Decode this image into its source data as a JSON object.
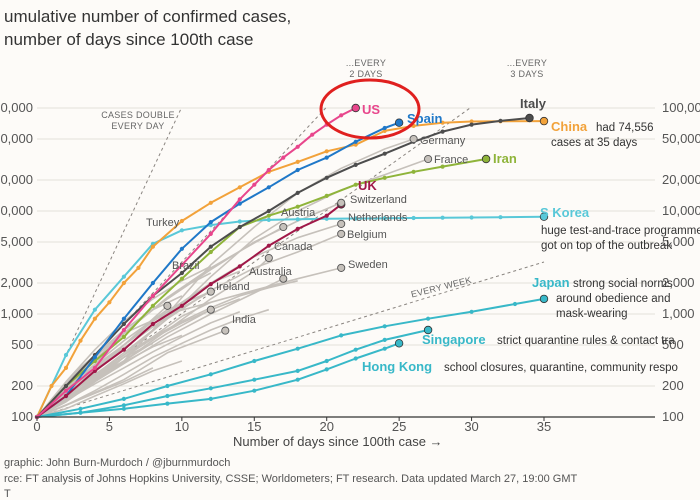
{
  "title_lines": [
    "umulative number of confirmed cases,",
    "number of days since 100th case"
  ],
  "footer_lines": [
    "graphic: John Burn-Murdoch / @jburnmurdoch",
    "rce: FT analysis of Johns Hopkins University, CSSE; Worldometers; FT research. Data updated March 27, 19:00 GMT",
    "T"
  ],
  "colors": {
    "background": "#fdfbf8",
    "gridline": "#e3e0da",
    "grey_series": "#c6c1bb",
    "guide_line": "#8a8580",
    "annotation_circle": "#e0201f",
    "US": "#e8468c",
    "Spain": "#1f78c8",
    "Italy": "#4d4d4d",
    "China": "#f2a23a",
    "Iran": "#8fb43a",
    "UK": "#a01848",
    "S Korea": "#59c8d8",
    "Japan": "#38b8c8",
    "Singapore": "#38b8c8",
    "Hong Kong": "#38b8c8"
  },
  "chart_data": {
    "type": "line",
    "title": "umulative number of confirmed cases, number of days since 100th case",
    "xlabel": "Number of days since 100th case →",
    "ylabel": "",
    "y_scale": "log",
    "xlim": [
      0,
      36
    ],
    "ylim": [
      100,
      100000
    ],
    "grid": true,
    "x_ticks": [
      0,
      5,
      10,
      15,
      20,
      25,
      30,
      35
    ],
    "y_ticks": [
      {
        "value": 100,
        "left": "100",
        "right": "100"
      },
      {
        "value": 200,
        "left": "200",
        "right": "200"
      },
      {
        "value": 500,
        "left": "500",
        "right": "500"
      },
      {
        "value": 1000,
        "left": "1,000",
        "right": "1,000"
      },
      {
        "value": 2000,
        "left": "2,000",
        "right": "2,000"
      },
      {
        "value": 5000,
        "left": "5,000",
        "right": "5,000"
      },
      {
        "value": 10000,
        "left": "0,000",
        "right": "10,000"
      },
      {
        "value": 20000,
        "left": "0,000",
        "right": "20,000"
      },
      {
        "value": 50000,
        "left": "0,000",
        "right": "50,000"
      },
      {
        "value": 100000,
        "left": "0,000",
        "right": "100,000"
      }
    ],
    "guides": [
      {
        "label_lines": [
          "CASES DOUBLE",
          "EVERY DAY"
        ],
        "days_per_doubling": 1
      },
      {
        "label_lines": [
          "...EVERY",
          "2 DAYS"
        ],
        "days_per_doubling": 2
      },
      {
        "label_lines": [
          "...EVERY",
          "3 DAYS"
        ],
        "days_per_doubling": 3
      },
      {
        "label_lines": [
          "EVERY WEEK"
        ],
        "days_per_doubling": 7
      }
    ],
    "highlighted_series": [
      {
        "name": "US",
        "x": [
          0,
          2,
          4,
          6,
          8,
          10,
          12,
          14,
          15,
          16,
          17,
          18,
          19,
          20,
          21,
          22
        ],
        "y": [
          100,
          180,
          300,
          700,
          1500,
          3000,
          6000,
          13000,
          18000,
          25000,
          33000,
          42000,
          55000,
          69000,
          85000,
          100000
        ]
      },
      {
        "name": "Spain",
        "x": [
          0,
          2,
          4,
          6,
          8,
          10,
          12,
          14,
          16,
          18,
          20,
          22,
          24,
          25
        ],
        "y": [
          100,
          160,
          380,
          900,
          2000,
          4300,
          7800,
          11800,
          17000,
          25000,
          33000,
          47000,
          64000,
          72000
        ]
      },
      {
        "name": "Italy",
        "x": [
          0,
          2,
          4,
          6,
          8,
          10,
          12,
          14,
          16,
          18,
          20,
          22,
          24,
          26,
          28,
          30,
          32,
          34
        ],
        "y": [
          100,
          200,
          400,
          800,
          1500,
          2500,
          4500,
          7000,
          10000,
          15000,
          21000,
          28000,
          36000,
          47000,
          59000,
          69000,
          75000,
          80000
        ]
      },
      {
        "name": "China",
        "x": [
          0,
          1,
          2,
          3,
          4,
          5,
          6,
          7,
          8,
          10,
          12,
          14,
          16,
          18,
          20,
          22,
          24,
          26,
          28,
          30,
          32,
          35
        ],
        "y": [
          100,
          200,
          300,
          550,
          900,
          1300,
          2000,
          2800,
          4500,
          8000,
          12000,
          17000,
          24000,
          30000,
          38000,
          44000,
          60000,
          67000,
          72000,
          74000,
          74300,
          74556
        ]
      },
      {
        "name": "Iran",
        "x": [
          0,
          2,
          4,
          6,
          8,
          10,
          12,
          14,
          16,
          18,
          20,
          22,
          24,
          26,
          28,
          31
        ],
        "y": [
          100,
          200,
          350,
          600,
          1200,
          2200,
          4000,
          7000,
          9000,
          11000,
          14000,
          18000,
          21000,
          24000,
          27000,
          32000
        ]
      },
      {
        "name": "UK",
        "x": [
          0,
          2,
          4,
          6,
          8,
          10,
          12,
          14,
          16,
          18,
          20,
          21
        ],
        "y": [
          100,
          160,
          280,
          450,
          800,
          1200,
          1950,
          2900,
          4600,
          6700,
          9000,
          11600
        ]
      },
      {
        "name": "S Korea",
        "x": [
          0,
          2,
          4,
          6,
          8,
          10,
          12,
          14,
          16,
          18,
          20,
          22,
          24,
          26,
          28,
          30,
          32,
          35
        ],
        "y": [
          100,
          400,
          1100,
          2300,
          4800,
          6500,
          7300,
          7900,
          8200,
          8300,
          8400,
          8450,
          8500,
          8550,
          8600,
          8650,
          8700,
          8800
        ]
      },
      {
        "name": "Japan",
        "x": [
          0,
          3,
          6,
          9,
          12,
          15,
          18,
          21,
          24,
          27,
          30,
          33,
          35
        ],
        "y": [
          100,
          120,
          150,
          200,
          260,
          350,
          460,
          620,
          760,
          900,
          1050,
          1250,
          1400
        ]
      },
      {
        "name": "Singapore",
        "x": [
          0,
          3,
          6,
          9,
          12,
          15,
          18,
          20,
          22,
          24,
          27
        ],
        "y": [
          100,
          110,
          130,
          160,
          190,
          230,
          280,
          350,
          450,
          560,
          700
        ]
      },
      {
        "name": "Hong Kong",
        "x": [
          0,
          3,
          6,
          9,
          12,
          15,
          18,
          20,
          22,
          24,
          25
        ],
        "y": [
          100,
          110,
          120,
          135,
          150,
          180,
          230,
          290,
          370,
          460,
          520
        ]
      }
    ],
    "grey_labeled_series": [
      {
        "name": "Germany",
        "x": [
          0,
          3,
          6,
          9,
          12,
          15,
          18,
          21,
          24,
          26
        ],
        "y": [
          100,
          180,
          350,
          1000,
          3000,
          7000,
          15000,
          26000,
          40000,
          50000
        ]
      },
      {
        "name": "France",
        "x": [
          0,
          3,
          6,
          9,
          12,
          15,
          18,
          21,
          24,
          27
        ],
        "y": [
          100,
          200,
          420,
          900,
          2300,
          5400,
          10000,
          16000,
          22500,
          32000
        ]
      },
      {
        "name": "Switzerland",
        "x": [
          0,
          3,
          6,
          9,
          12,
          15,
          18,
          21
        ],
        "y": [
          100,
          300,
          700,
          1400,
          2700,
          5000,
          8000,
          12000
        ]
      },
      {
        "name": "Netherlands",
        "x": [
          0,
          3,
          6,
          9,
          12,
          15,
          18,
          21
        ],
        "y": [
          100,
          250,
          500,
          1000,
          2000,
          3600,
          5500,
          7500
        ]
      },
      {
        "name": "Belgium",
        "x": [
          0,
          3,
          6,
          9,
          12,
          15,
          18,
          21
        ],
        "y": [
          100,
          200,
          400,
          900,
          1700,
          2800,
          4000,
          6000
        ]
      },
      {
        "name": "Austria",
        "x": [
          0,
          3,
          6,
          9,
          12,
          15,
          17
        ],
        "y": [
          100,
          230,
          650,
          1450,
          2800,
          4900,
          7000
        ]
      },
      {
        "name": "Turkey",
        "x": [
          0,
          3,
          6,
          9
        ],
        "y": [
          100,
          200,
          500,
          1200
        ]
      },
      {
        "name": "Canada",
        "x": [
          0,
          3,
          6,
          9,
          12,
          15,
          16
        ],
        "y": [
          100,
          200,
          350,
          700,
          1400,
          2600,
          3500
        ]
      },
      {
        "name": "Brazil",
        "x": [
          0,
          3,
          6,
          9,
          12
        ],
        "y": [
          100,
          250,
          550,
          1100,
          1650
        ]
      },
      {
        "name": "Australia",
        "x": [
          0,
          3,
          6,
          9,
          12,
          15,
          17
        ],
        "y": [
          100,
          180,
          330,
          600,
          1000,
          1600,
          2200
        ]
      },
      {
        "name": "Ireland",
        "x": [
          0,
          3,
          6,
          9,
          12
        ],
        "y": [
          100,
          190,
          350,
          650,
          1100
        ]
      },
      {
        "name": "Sweden",
        "x": [
          0,
          3,
          6,
          9,
          12,
          15,
          18,
          21
        ],
        "y": [
          100,
          300,
          650,
          1000,
          1300,
          1700,
          2200,
          2800
        ]
      },
      {
        "name": "India",
        "x": [
          0,
          3,
          6,
          9,
          13
        ],
        "y": [
          100,
          150,
          230,
          420,
          690
        ]
      }
    ],
    "grey_background_series": [
      {
        "x": [
          0,
          2,
          4,
          6,
          8,
          10,
          12
        ],
        "y": [
          100,
          140,
          220,
          380,
          600,
          950,
          1300
        ]
      },
      {
        "x": [
          0,
          2,
          4,
          6,
          8,
          10,
          12,
          14
        ],
        "y": [
          100,
          170,
          300,
          500,
          850,
          1300,
          2000,
          2600
        ]
      },
      {
        "x": [
          0,
          2,
          4,
          6,
          8,
          10
        ],
        "y": [
          100,
          150,
          230,
          340,
          480,
          620
        ]
      },
      {
        "x": [
          0,
          2,
          4,
          6,
          8,
          10,
          12,
          14,
          16
        ],
        "y": [
          100,
          130,
          180,
          260,
          380,
          520,
          700,
          900,
          1100
        ]
      },
      {
        "x": [
          0,
          2,
          4,
          6,
          8,
          10,
          12
        ],
        "y": [
          100,
          190,
          360,
          650,
          1100,
          1800,
          2500
        ]
      },
      {
        "x": [
          0,
          2,
          4,
          6,
          8
        ],
        "y": [
          100,
          160,
          250,
          380,
          520
        ]
      },
      {
        "x": [
          0,
          2,
          4,
          6,
          8,
          10,
          12,
          14
        ],
        "y": [
          100,
          145,
          210,
          300,
          430,
          600,
          820,
          1050
        ]
      },
      {
        "x": [
          0,
          2,
          4,
          6,
          8,
          10,
          12
        ],
        "y": [
          100,
          220,
          450,
          850,
          1400,
          2100,
          2900
        ]
      },
      {
        "x": [
          0,
          2,
          4,
          6,
          8,
          10
        ],
        "y": [
          100,
          120,
          160,
          210,
          280,
          350
        ]
      },
      {
        "x": [
          0,
          2,
          4,
          6,
          8,
          10,
          12,
          14,
          16,
          18
        ],
        "y": [
          100,
          160,
          260,
          400,
          600,
          850,
          1150,
          1500,
          1800,
          2100
        ]
      },
      {
        "x": [
          0,
          2,
          4,
          6,
          8,
          10,
          12
        ],
        "y": [
          100,
          175,
          290,
          470,
          750,
          1150,
          1650
        ]
      },
      {
        "x": [
          0,
          2,
          4,
          6,
          8,
          10
        ],
        "y": [
          100,
          200,
          380,
          700,
          1100,
          1500
        ]
      },
      {
        "x": [
          0,
          2,
          4,
          6,
          8
        ],
        "y": [
          100,
          130,
          170,
          220,
          300
        ]
      },
      {
        "x": [
          0,
          2,
          4,
          6,
          8,
          10,
          12,
          14
        ],
        "y": [
          100,
          150,
          240,
          380,
          580,
          820,
          1100,
          1400
        ]
      }
    ],
    "annotations": [
      {
        "series": "China",
        "text_lines": [
          "had 74,556",
          "cases at 35 days"
        ]
      },
      {
        "series": "S Korea",
        "text_lines": [
          "huge test-and-trace programme",
          "got on top of the outbreak"
        ]
      },
      {
        "series": "Japan",
        "text_lines": [
          "strong social norms",
          "around obedience and",
          "mask-wearing"
        ]
      },
      {
        "series": "Singapore",
        "text_lines": [
          "strict quarantine rules & contact tra"
        ]
      },
      {
        "series": "Hong Kong",
        "text_lines": [
          "school closures, quarantine, community respo"
        ]
      }
    ],
    "circled_series": "US"
  }
}
